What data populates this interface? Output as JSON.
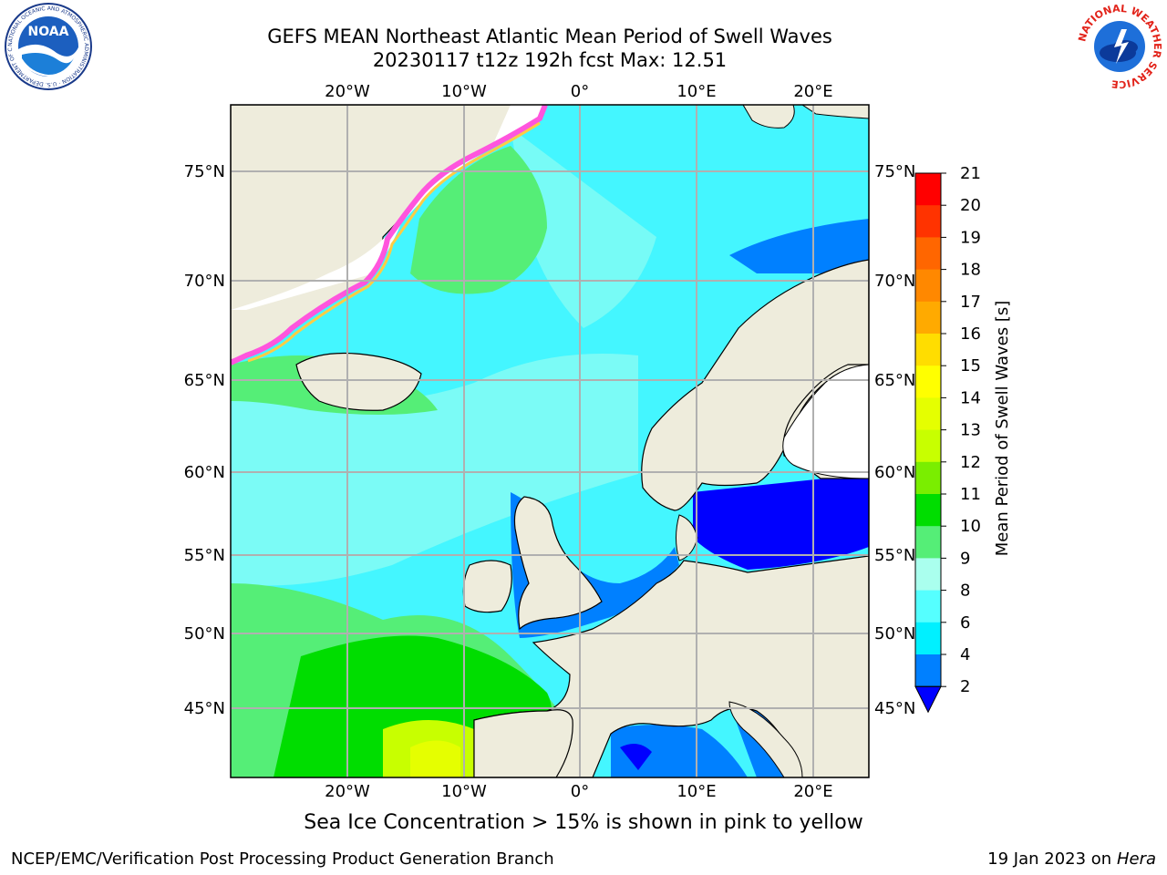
{
  "header": {
    "title_line1": "GEFS MEAN Northeast Atlantic Mean Period of Swell Waves",
    "title_line2": "20230117 t12z 192h fcst   Max: 12.51"
  },
  "logos": {
    "left_name": "NOAA",
    "left_ring_text": "NATIONAL OCEANIC AND ATMOSPHERIC ADMINISTRATION · U.S. DEPARTMENT OF COMMERCE",
    "right_ring_text": "NATIONAL WEATHER SERVICE"
  },
  "map": {
    "lon_ticks": [
      "20°W",
      "10°W",
      "0°",
      "10°E",
      "20°E"
    ],
    "lat_ticks": [
      "75°N",
      "70°N",
      "65°N",
      "60°N",
      "55°N",
      "50°N",
      "45°N"
    ],
    "colors": {
      "land": "#eeecdc",
      "ice_free_white": "#ffffff",
      "grid": "#b0b0b0"
    }
  },
  "colorbar": {
    "label": "Mean Period of Swell Waves [s]",
    "ticks": [
      "21",
      "20",
      "19",
      "18",
      "17",
      "16",
      "15",
      "14",
      "13",
      "12",
      "11",
      "10",
      "9",
      "8",
      "6",
      "4",
      "2"
    ],
    "colors": [
      "#ff0000",
      "#ff3300",
      "#ff6600",
      "#ff8800",
      "#ffaa00",
      "#ffdd00",
      "#ffff00",
      "#e5ff00",
      "#c8ff00",
      "#7aee00",
      "#00dd00",
      "#55ee77",
      "#aaffee",
      "#55ffff",
      "#00f0ff",
      "#0080ff"
    ],
    "extend_color": "#0000ff"
  },
  "footer": {
    "note": "Sea Ice Concentration > 15% is shown in pink to yellow",
    "left": "NCEP/EMC/Verification Post Processing Product Generation Branch",
    "right_prefix": "19 Jan 2023 on ",
    "right_host": "Hera"
  }
}
